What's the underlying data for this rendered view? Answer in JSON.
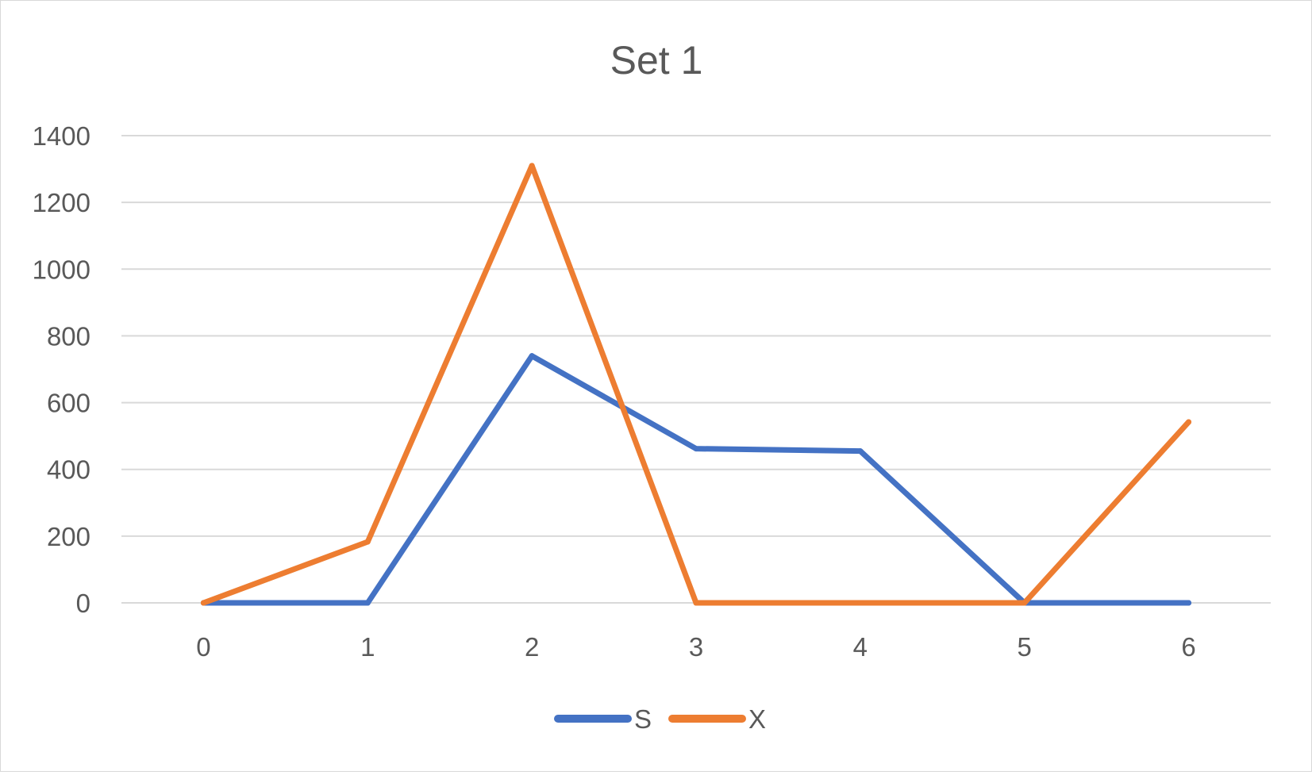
{
  "chart_data": {
    "type": "line",
    "title": "Set 1",
    "xlabel": "",
    "ylabel": "",
    "x": [
      0,
      1,
      2,
      3,
      4,
      5,
      6
    ],
    "ylim": [
      0,
      1400
    ],
    "yticks": [
      0,
      200,
      400,
      600,
      800,
      1000,
      1200,
      1400
    ],
    "grid": true,
    "legend_position": "bottom",
    "series": [
      {
        "name": "S",
        "color": "#4472C4",
        "values": [
          0,
          0,
          740,
          462,
          455,
          0,
          0
        ]
      },
      {
        "name": "X",
        "color": "#ED7D31",
        "values": [
          0,
          183,
          1310,
          0,
          0,
          0,
          542
        ]
      }
    ]
  }
}
